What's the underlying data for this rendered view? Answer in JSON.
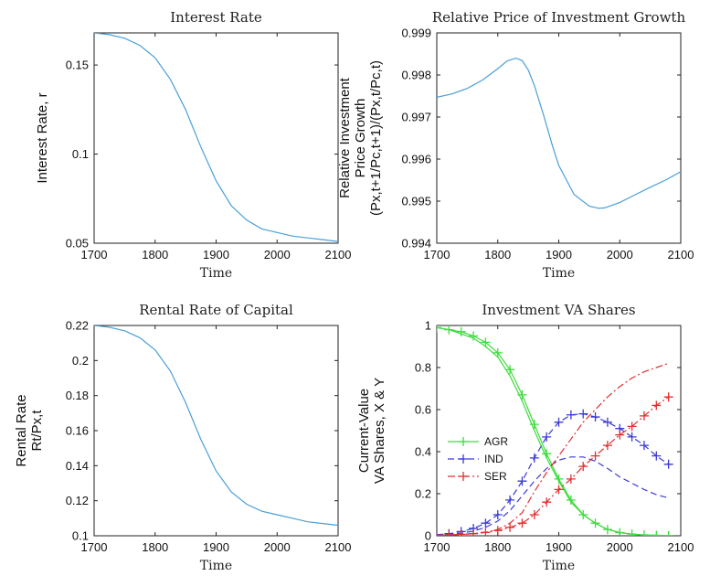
{
  "chart_data": [
    {
      "type": "line",
      "title": "Interest Rate",
      "xlabel": "Time",
      "ylabel": "Interest Rate, r",
      "xlim": [
        1700,
        2100
      ],
      "ylim": [
        0.05,
        0.168
      ],
      "xticks": [
        "1700",
        "1800",
        "1900",
        "2000",
        "2100"
      ],
      "yticks": [
        "0.05",
        "0.1",
        "0.15"
      ],
      "grid": false,
      "series": [
        {
          "color": "#4a9fd8",
          "x": [
            1700,
            1725,
            1750,
            1775,
            1800,
            1825,
            1850,
            1875,
            1900,
            1925,
            1950,
            1975,
            2000,
            2025,
            2050,
            2075,
            2100
          ],
          "y": [
            0.168,
            0.167,
            0.165,
            0.161,
            0.154,
            0.142,
            0.125,
            0.104,
            0.085,
            0.071,
            0.063,
            0.058,
            0.056,
            0.054,
            0.053,
            0.052,
            0.051
          ]
        }
      ]
    },
    {
      "type": "line",
      "title": "Relative Price of Investment Growth",
      "xlabel": "Time",
      "ylabel_lines": [
        "Relative Investment",
        "Price Growth",
        "(Px,t+1/Pc,t+1)/(Px,t/Pc,t)"
      ],
      "xlim": [
        1700,
        2100
      ],
      "ylim": [
        0.994,
        0.999
      ],
      "xticks": [
        "1700",
        "1800",
        "1900",
        "2000",
        "2100"
      ],
      "yticks": [
        "0.994",
        "0.995",
        "0.996",
        "0.997",
        "0.998",
        "0.999"
      ],
      "grid": false,
      "series": [
        {
          "color": "#4a9fd8",
          "x": [
            1700,
            1725,
            1750,
            1775,
            1800,
            1815,
            1830,
            1840,
            1850,
            1860,
            1875,
            1890,
            1900,
            1925,
            1950,
            1965,
            1975,
            2000,
            2025,
            2050,
            2075,
            2100
          ],
          "y": [
            0.99747,
            0.99755,
            0.99768,
            0.99788,
            0.99815,
            0.99833,
            0.9984,
            0.99834,
            0.99812,
            0.99775,
            0.99705,
            0.9963,
            0.99585,
            0.99516,
            0.99488,
            0.99483,
            0.99484,
            0.99497,
            0.99515,
            0.99533,
            0.9955,
            0.9957
          ]
        }
      ]
    },
    {
      "type": "line",
      "title": "Rental Rate of Capital",
      "xlabel": "Time",
      "ylabel_lines": [
        "Rental Rate",
        "Rt/Px,t"
      ],
      "xlim": [
        1700,
        2100
      ],
      "ylim": [
        0.1,
        0.22
      ],
      "xticks": [
        "1700",
        "1800",
        "1900",
        "2000",
        "2100"
      ],
      "yticks": [
        "0.1",
        "0.12",
        "0.14",
        "0.16",
        "0.18",
        "0.2",
        "0.22"
      ],
      "grid": false,
      "series": [
        {
          "color": "#4a9fd8",
          "x": [
            1700,
            1725,
            1750,
            1775,
            1800,
            1825,
            1850,
            1875,
            1900,
            1925,
            1950,
            1975,
            2000,
            2025,
            2050,
            2075,
            2100
          ],
          "y": [
            0.22,
            0.219,
            0.217,
            0.213,
            0.206,
            0.194,
            0.176,
            0.155,
            0.137,
            0.125,
            0.118,
            0.114,
            0.112,
            0.11,
            0.108,
            0.107,
            0.106
          ]
        }
      ]
    },
    {
      "type": "line",
      "title": "Investment VA Shares",
      "xlabel": "Time",
      "ylabel_lines": [
        "Current-Value",
        "VA Shares, X & Y"
      ],
      "xlim": [
        1700,
        2100
      ],
      "ylim": [
        0,
        1
      ],
      "xticks": [
        "1700",
        "1800",
        "1900",
        "2000",
        "2100"
      ],
      "yticks": [
        "0",
        "0.2",
        "0.4",
        "0.6",
        "0.8",
        "1"
      ],
      "grid": false,
      "legend": {
        "position": "middle-left",
        "entries": [
          "AGR",
          "IND",
          "SER"
        ]
      },
      "series": [
        {
          "name": "AGR",
          "style": "solid",
          "marker": "+",
          "color": "#3ddc3d",
          "role": "marker-line",
          "x": [
            1700,
            1720,
            1740,
            1760,
            1780,
            1800,
            1820,
            1840,
            1860,
            1880,
            1900,
            1920,
            1940,
            1960,
            1980,
            2000,
            2020,
            2040,
            2060,
            2080
          ],
          "y": [
            0.99,
            0.98,
            0.97,
            0.95,
            0.92,
            0.87,
            0.79,
            0.67,
            0.53,
            0.39,
            0.27,
            0.17,
            0.1,
            0.06,
            0.03,
            0.015,
            0.008,
            0.004,
            0.002,
            0.001
          ]
        },
        {
          "name": "AGR-Y",
          "style": "solid",
          "color": "#3ddc3d",
          "role": "plain",
          "x": [
            1700,
            1720,
            1740,
            1760,
            1780,
            1800,
            1820,
            1840,
            1860,
            1880,
            1900,
            1920,
            1940,
            1960,
            1980,
            2000,
            2020,
            2040,
            2060,
            2080
          ],
          "y": [
            0.99,
            0.98,
            0.96,
            0.94,
            0.9,
            0.85,
            0.76,
            0.64,
            0.5,
            0.37,
            0.26,
            0.16,
            0.1,
            0.06,
            0.03,
            0.015,
            0.008,
            0.004,
            0.002,
            0.001
          ]
        },
        {
          "name": "IND",
          "style": "dashed",
          "marker": "+",
          "color": "#3a3ad8",
          "role": "marker-line",
          "x": [
            1700,
            1720,
            1740,
            1760,
            1780,
            1800,
            1820,
            1840,
            1860,
            1880,
            1900,
            1920,
            1940,
            1960,
            1980,
            2000,
            2020,
            2040,
            2060,
            2080
          ],
          "y": [
            0.005,
            0.01,
            0.02,
            0.035,
            0.06,
            0.1,
            0.17,
            0.26,
            0.37,
            0.47,
            0.54,
            0.575,
            0.58,
            0.565,
            0.54,
            0.51,
            0.47,
            0.43,
            0.38,
            0.34
          ]
        },
        {
          "name": "IND-Y",
          "style": "dashed",
          "color": "#3a3ad8",
          "role": "plain",
          "x": [
            1700,
            1720,
            1740,
            1760,
            1780,
            1800,
            1820,
            1840,
            1860,
            1880,
            1900,
            1920,
            1940,
            1960,
            1980,
            2000,
            2020,
            2040,
            2060,
            2080
          ],
          "y": [
            0.003,
            0.007,
            0.012,
            0.022,
            0.04,
            0.07,
            0.12,
            0.19,
            0.26,
            0.32,
            0.36,
            0.375,
            0.375,
            0.355,
            0.32,
            0.28,
            0.25,
            0.22,
            0.195,
            0.18
          ]
        },
        {
          "name": "SER",
          "style": "dashdot",
          "marker": "+",
          "color": "#e03030",
          "role": "marker-line",
          "x": [
            1700,
            1720,
            1740,
            1760,
            1780,
            1800,
            1820,
            1840,
            1860,
            1880,
            1900,
            1920,
            1940,
            1960,
            1980,
            2000,
            2020,
            2040,
            2060,
            2080
          ],
          "y": [
            0.002,
            0.004,
            0.007,
            0.01,
            0.016,
            0.025,
            0.04,
            0.06,
            0.1,
            0.16,
            0.22,
            0.27,
            0.33,
            0.38,
            0.43,
            0.48,
            0.52,
            0.57,
            0.62,
            0.66
          ]
        },
        {
          "name": "SER-Y",
          "style": "dashdot",
          "color": "#e03030",
          "role": "plain",
          "x": [
            1700,
            1720,
            1740,
            1760,
            1780,
            1800,
            1820,
            1840,
            1860,
            1880,
            1900,
            1920,
            1940,
            1960,
            1980,
            2000,
            2020,
            2040,
            2060,
            2080
          ],
          "y": [
            0.002,
            0.004,
            0.006,
            0.01,
            0.016,
            0.03,
            0.06,
            0.11,
            0.21,
            0.3,
            0.38,
            0.46,
            0.54,
            0.6,
            0.66,
            0.71,
            0.75,
            0.78,
            0.8,
            0.82
          ]
        }
      ]
    }
  ]
}
